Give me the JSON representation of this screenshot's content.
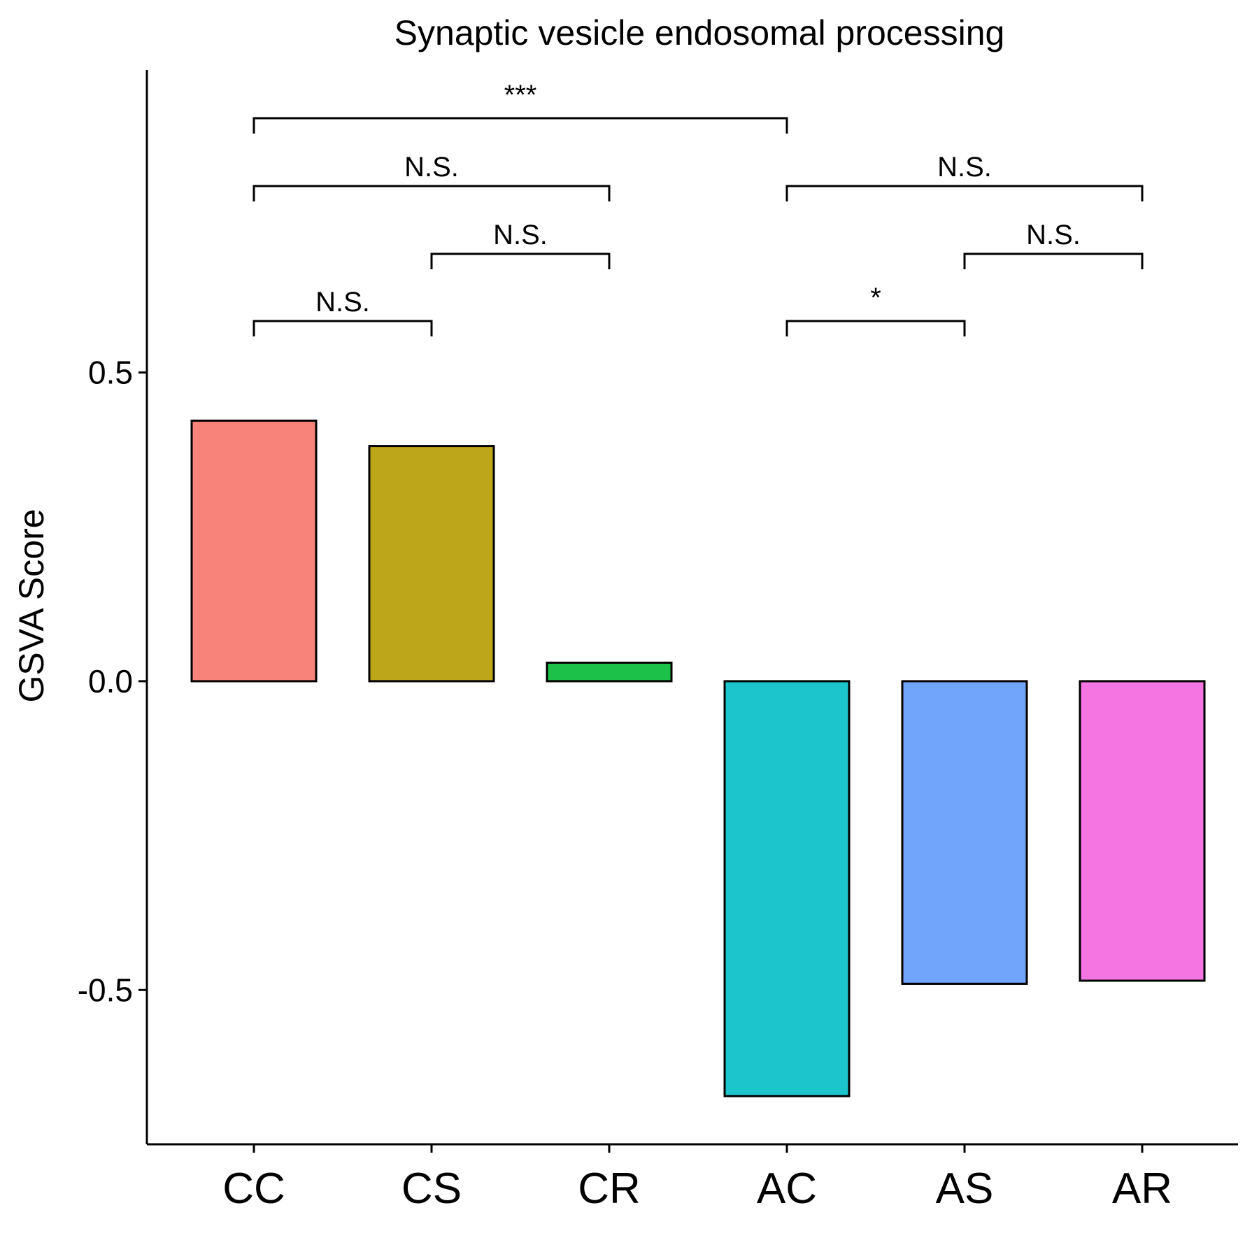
{
  "chart_data": {
    "type": "bar",
    "title": "Synaptic vesicle endosomal processing",
    "xlabel": "",
    "ylabel": "GSVA Score",
    "categories": [
      "CC",
      "CS",
      "CR",
      "AC",
      "AS",
      "AR"
    ],
    "values": [
      0.422,
      0.381,
      0.03,
      -0.672,
      -0.49,
      -0.485
    ],
    "colors": [
      "#F8837B",
      "#BEA61A",
      "#1BC149",
      "#1CC5CB",
      "#71A5FC",
      "#F576E3"
    ],
    "ylim": [
      -0.75,
      0.99
    ],
    "yticks": [
      -0.5,
      0.0,
      0.5
    ],
    "ytick_labels": [
      "-0.5",
      "0.0",
      "0.5"
    ],
    "grid": false,
    "legend": "none",
    "comparisons": [
      {
        "from": "CC",
        "to": "CS",
        "label": "N.S.",
        "level": 0
      },
      {
        "from": "AC",
        "to": "AS",
        "label": "*",
        "level": 0
      },
      {
        "from": "CS",
        "to": "CR",
        "label": "N.S.",
        "level": 1
      },
      {
        "from": "AS",
        "to": "AR",
        "label": "N.S.",
        "level": 1
      },
      {
        "from": "CC",
        "to": "CR",
        "label": "N.S.",
        "level": 2
      },
      {
        "from": "AC",
        "to": "AR",
        "label": "N.S.",
        "level": 2
      },
      {
        "from": "CC",
        "to": "AC",
        "label": "***",
        "level": 3
      }
    ]
  }
}
